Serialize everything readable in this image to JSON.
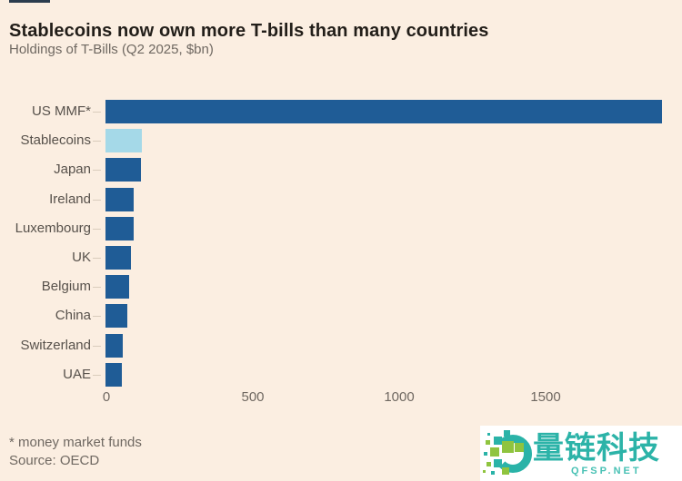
{
  "page": {
    "background_color": "#fbeee1"
  },
  "header": {
    "title": "Stablecoins now own more T-bills than many countries",
    "subtitle": "Holdings of T-Bills (Q2 2025, $bn)"
  },
  "chart_data": {
    "type": "bar",
    "orientation": "horizontal",
    "title": "Stablecoins now own more T-bills than many countries",
    "subtitle": "Holdings of T-Bills (Q2 2025, $bn)",
    "categories": [
      "US MMF*",
      "Stablecoins",
      "Japan",
      "Ireland",
      "Luxembourg",
      "UK",
      "Belgium",
      "China",
      "Switzerland",
      "UAE"
    ],
    "values": [
      1900,
      125,
      121,
      97,
      95,
      88,
      80,
      73,
      59,
      56
    ],
    "xticks": [
      0,
      500,
      1000,
      1500
    ],
    "xlim": [
      0,
      1970
    ],
    "xlabel": "",
    "ylabel": "",
    "grid": false,
    "legend": false,
    "bar_color": "#1f5c96",
    "highlight_color": "#a5d9e8",
    "highlight_index": 1
  },
  "footnotes": {
    "note": "* money market funds",
    "source": "Source: OECD"
  },
  "watermark": {
    "brand": "量链科技",
    "url": "QFSP.NET",
    "brand_color": "#2cb3a8",
    "logo_teal": "#2ab3a8",
    "logo_green": "#8fc43f"
  }
}
